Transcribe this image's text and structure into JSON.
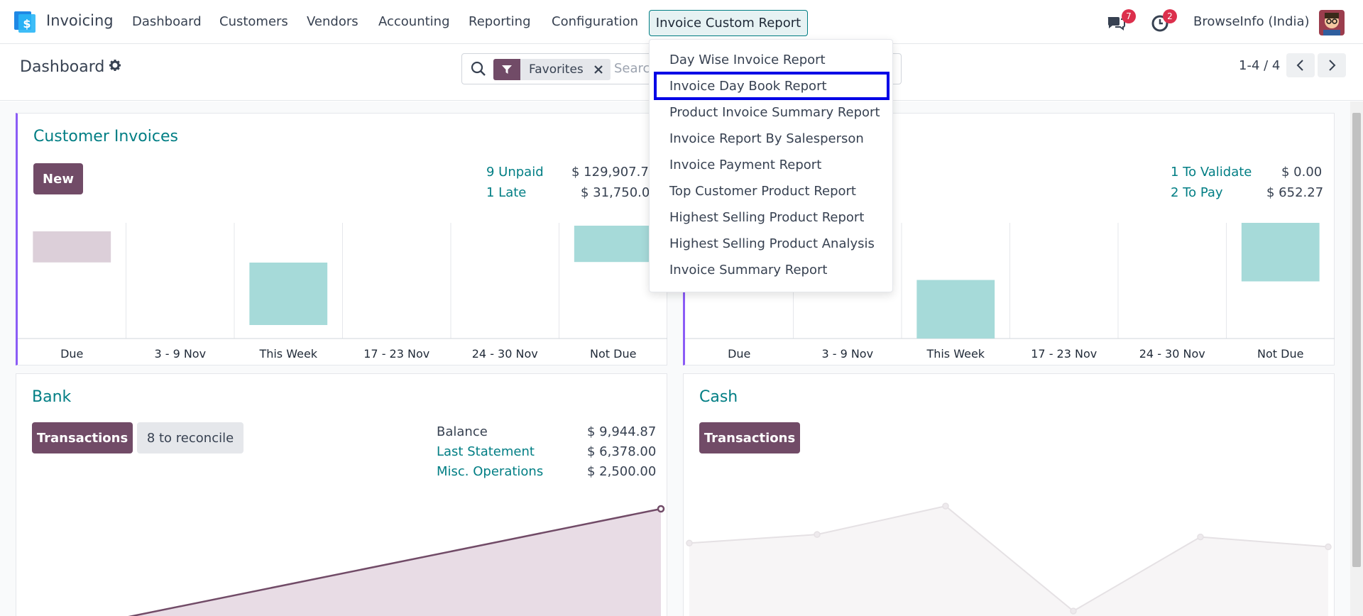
{
  "navbar": {
    "app_name": "Invoicing",
    "menus": [
      "Dashboard",
      "Customers",
      "Vendors",
      "Accounting",
      "Reporting",
      "Configuration"
    ],
    "active_menu": "Invoice Custom Report",
    "messages_badge": "7",
    "activities_badge": "2",
    "company": "BrowseInfo (India)"
  },
  "control_panel": {
    "breadcrumb": "Dashboard",
    "facet_label": "Favorites",
    "search_placeholder": "Search...",
    "pager": "1-4 / 4"
  },
  "dropdown": {
    "items": [
      "Day Wise Invoice Report",
      "Invoice Day Book Report",
      "Product Invoice Summary Report",
      "Invoice Report By Salesperson",
      "Invoice Payment Report",
      "Top Customer Product Report",
      "Highest Selling Product Report",
      "Highest Selling Product Analysis",
      "Invoice Summary Report"
    ],
    "highlighted_index": 1
  },
  "cards": {
    "customer_invoices": {
      "title": "Customer Invoices",
      "new_label": "New",
      "stats": [
        {
          "label": "9 Unpaid",
          "value": "$ 129,907.75"
        },
        {
          "label": "1 Late",
          "value": "$ 31,750.00"
        }
      ]
    },
    "vendor_bills": {
      "stats": [
        {
          "label": "1 To Validate",
          "value": "$ 0.00"
        },
        {
          "label": "2 To Pay",
          "value": "$ 652.27"
        }
      ]
    },
    "bank": {
      "title": "Bank",
      "transactions_label": "Transactions",
      "reconcile_label": "8 to reconcile",
      "stats": [
        {
          "label": "Balance",
          "value": "$ 9,944.87"
        },
        {
          "label": "Last Statement",
          "value": "$ 6,378.00"
        },
        {
          "label": "Misc. Operations",
          "value": "$ 2,500.00"
        }
      ]
    },
    "cash": {
      "title": "Cash",
      "transactions_label": "Transactions"
    }
  },
  "chart_data": [
    {
      "type": "bar",
      "categories": [
        "Due",
        "3 - 9 Nov",
        "This Week",
        "17 - 23 Nov",
        "24 - 30 Nov",
        "Not Due"
      ],
      "values": [
        -0.35,
        0,
        -0.55,
        0,
        0,
        0.32
      ],
      "colors": [
        "#dccfd9",
        "#a6dad9",
        "#a6dad9",
        "#a6dad9",
        "#a6dad9",
        "#a6dad9"
      ]
    },
    {
      "type": "bar",
      "categories": [
        "Due",
        "3 - 9 Nov",
        "This Week",
        "17 - 23 Nov",
        "24 - 30 Nov",
        "Not Due"
      ],
      "values": [
        0,
        0,
        -0.5,
        0,
        0,
        0.5
      ],
      "colors": [
        "#a6dad9",
        "#a6dad9",
        "#a6dad9",
        "#a6dad9",
        "#a6dad9",
        "#a6dad9"
      ]
    },
    {
      "type": "area",
      "values": [
        0,
        1
      ],
      "color": "#714b67"
    },
    {
      "type": "line",
      "values": [
        0.55,
        0.62,
        0.85,
        0,
        0.6,
        0.52
      ],
      "color": "#e5e1e4"
    }
  ]
}
